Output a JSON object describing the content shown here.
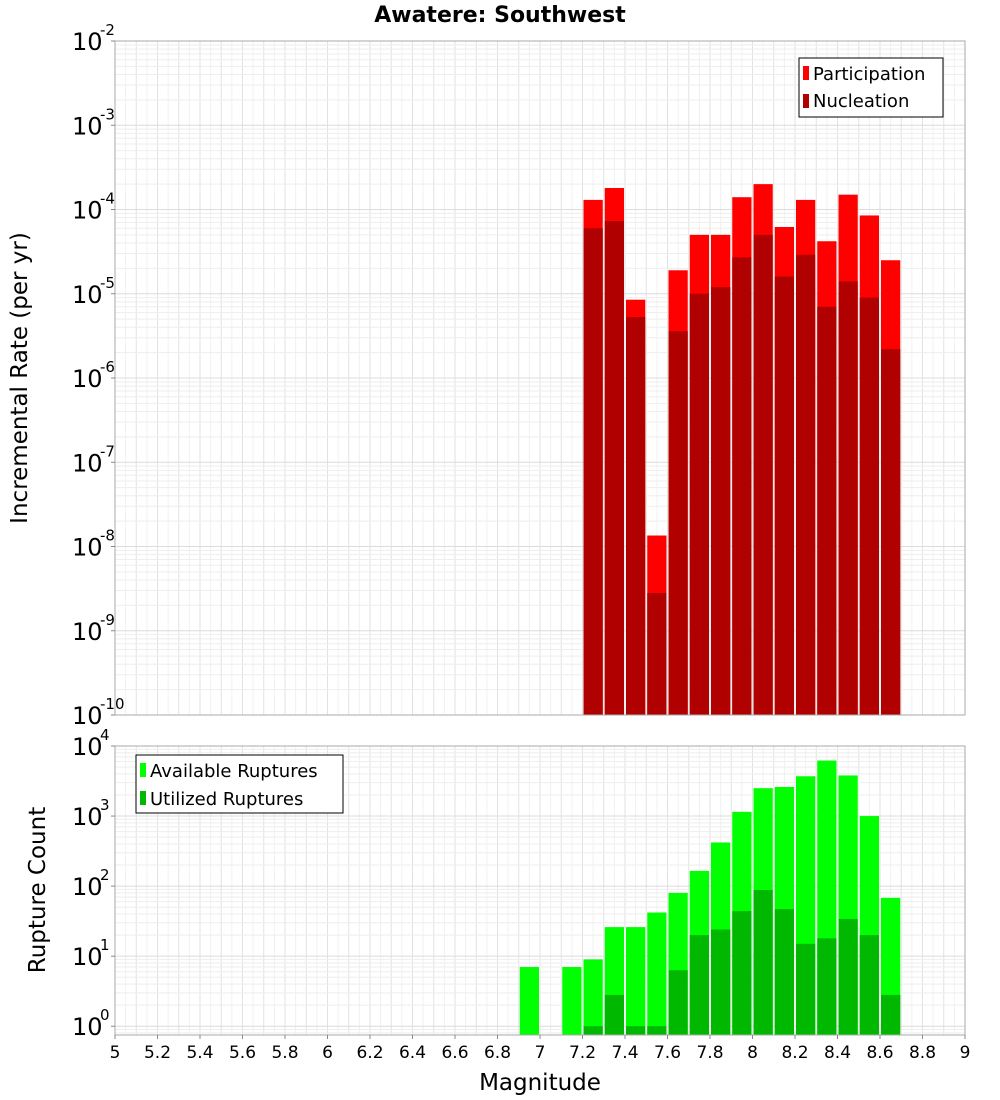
{
  "chart_data": [
    {
      "type": "bar",
      "title": "Awatere: Southwest",
      "xlabel": "",
      "ylabel": "Incremental Rate (per yr)",
      "yscale": "log",
      "xlim": [
        5,
        9
      ],
      "ylim": [
        1e-10,
        0.01
      ],
      "grid": true,
      "legend_position": "top-right",
      "y_tick_exponents": [
        "-10",
        "-9",
        "-8",
        "-7",
        "-6",
        "-5",
        "-4",
        "-3",
        "-2"
      ],
      "x": [
        7.25,
        7.35,
        7.45,
        7.55,
        7.65,
        7.75,
        7.85,
        7.95,
        8.05,
        8.15,
        8.25,
        8.35,
        8.45,
        8.55,
        8.65
      ],
      "series": [
        {
          "name": "Participation",
          "color": "#ff0000",
          "values": [
            0.00013,
            0.00018,
            8.5e-06,
            1.35e-08,
            1.9e-05,
            5e-05,
            5e-05,
            0.00014,
            0.0002,
            6.2e-05,
            0.00013,
            4.2e-05,
            0.00015,
            8.5e-05,
            2.5e-05
          ]
        },
        {
          "name": "Nucleation",
          "color": "#b00000",
          "values": [
            6e-05,
            7.3e-05,
            5.3e-06,
            2.8e-09,
            3.6e-06,
            1e-05,
            1.2e-05,
            2.7e-05,
            5e-05,
            1.6e-05,
            2.9e-05,
            7e-06,
            1.4e-05,
            9e-06,
            2.2e-06
          ]
        }
      ]
    },
    {
      "type": "bar",
      "title": "",
      "xlabel": "Magnitude",
      "ylabel": "Rupture Count",
      "yscale": "log",
      "xlim": [
        5,
        9
      ],
      "ylim": [
        0.75,
        10000
      ],
      "grid": true,
      "legend_position": "top-left",
      "x_tick_labels": [
        "5",
        "5.2",
        "5.4",
        "5.6",
        "5.8",
        "6",
        "6.2",
        "6.4",
        "6.6",
        "6.8",
        "7",
        "7.2",
        "7.4",
        "7.6",
        "7.8",
        "8",
        "8.2",
        "8.4",
        "8.6",
        "8.8",
        "9"
      ],
      "y_tick_exponents": [
        "0",
        "1",
        "2",
        "3",
        "4"
      ],
      "x": [
        6.95,
        7.15,
        7.25,
        7.35,
        7.45,
        7.55,
        7.65,
        7.75,
        7.85,
        7.95,
        8.05,
        8.15,
        8.25,
        8.35,
        8.45,
        8.55,
        8.65
      ],
      "series": [
        {
          "name": "Available Ruptures",
          "color": "#00ff00",
          "values": [
            7,
            7,
            9,
            26,
            26,
            42,
            80,
            165,
            420,
            1150,
            2500,
            2600,
            3700,
            6200,
            3800,
            1000,
            68
          ]
        },
        {
          "name": "Utilized Ruptures",
          "color": "#00b800",
          "values": [
            0,
            0,
            1,
            2.8,
            1,
            1,
            6.3,
            20,
            24,
            44,
            88,
            47,
            15,
            18,
            34,
            20,
            2.8
          ]
        }
      ]
    }
  ]
}
